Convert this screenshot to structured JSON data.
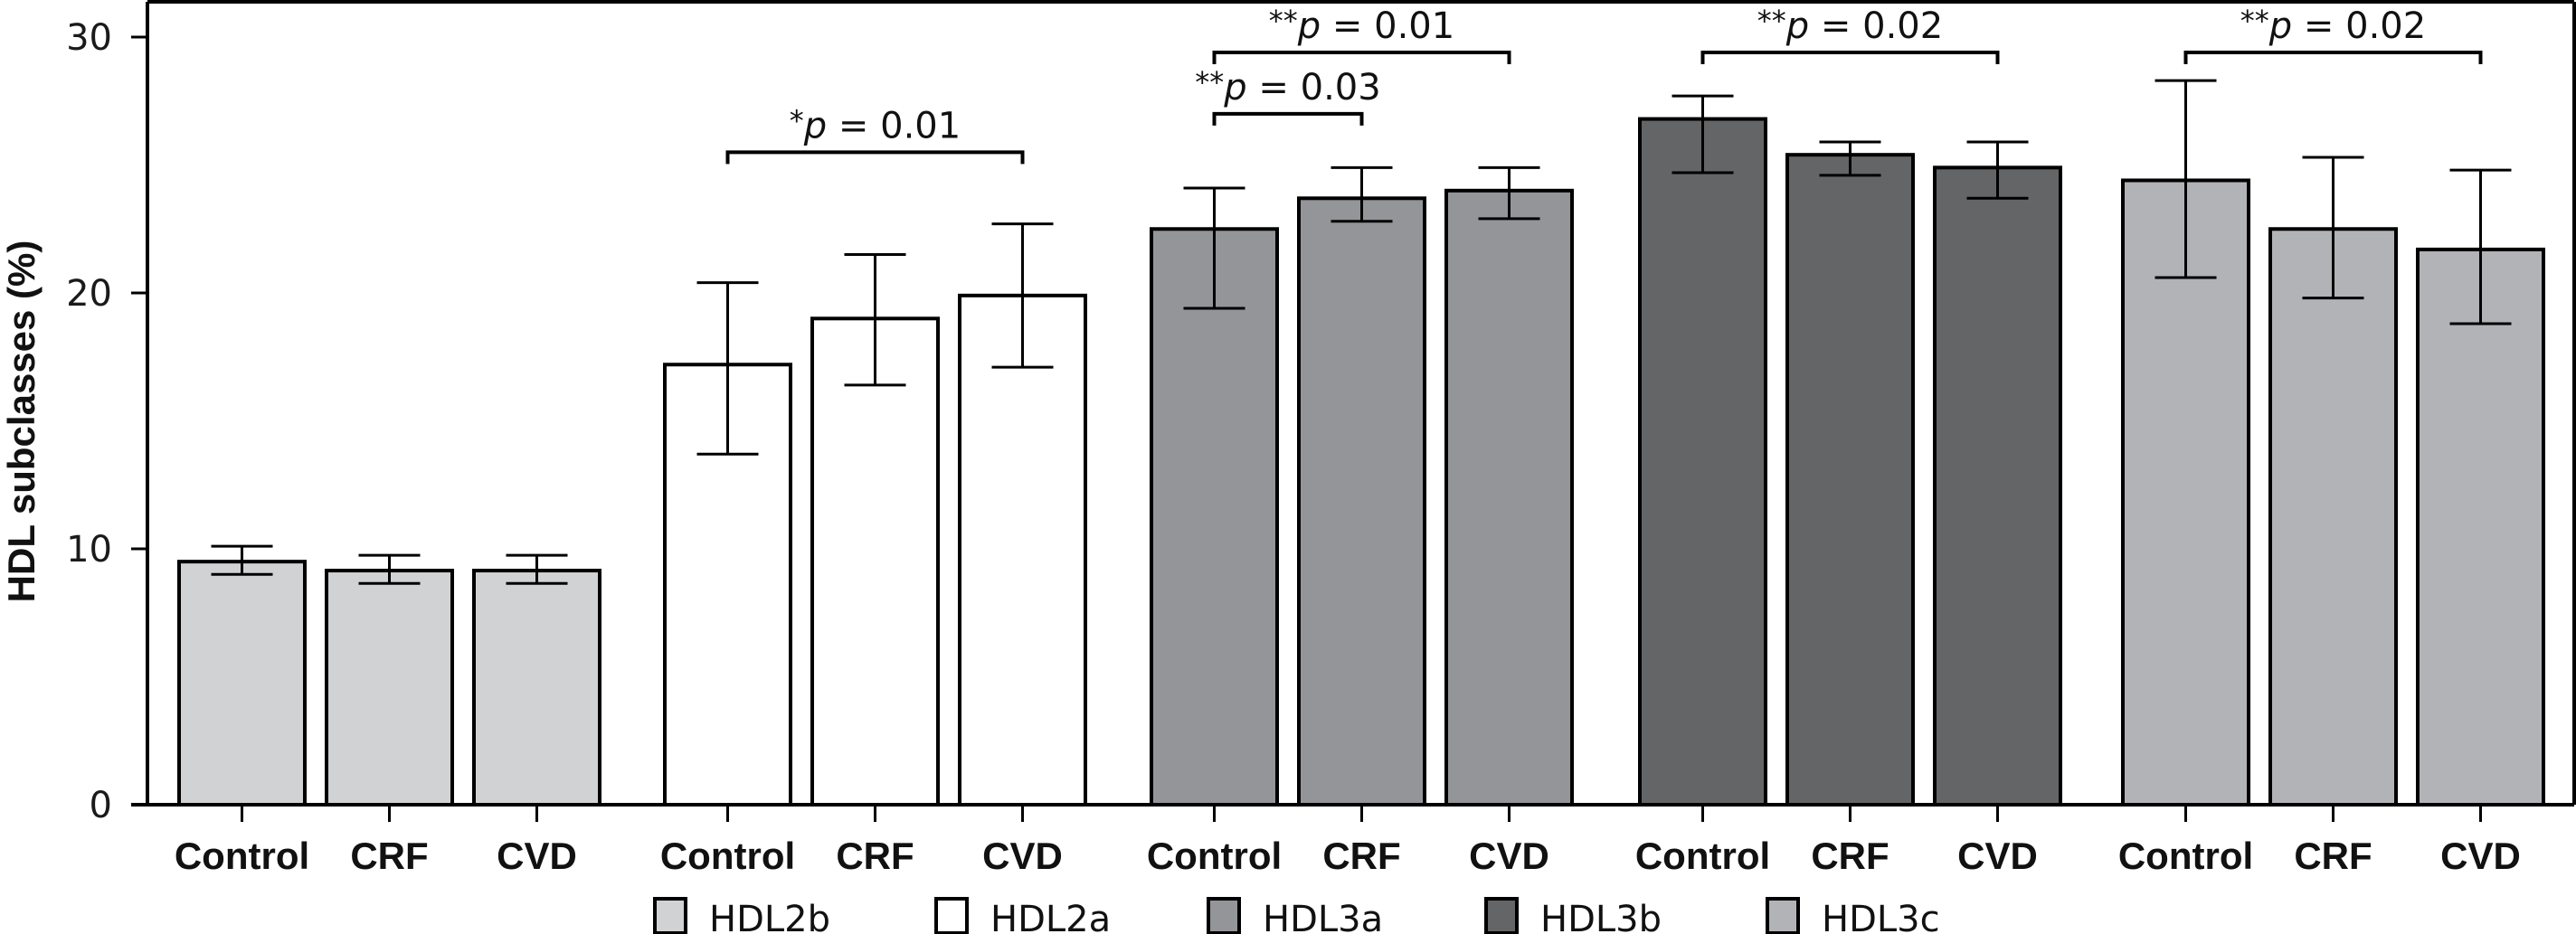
{
  "chart_data": {
    "type": "bar",
    "title": "",
    "xlabel": "",
    "ylabel": "HDL subclasses (%)",
    "ylim": [
      0,
      30
    ],
    "yticks": [
      0,
      10,
      20,
      30
    ],
    "grid": false,
    "legend_position": "bottom",
    "groups": [
      "HDL2b",
      "HDL2a",
      "HDL3a",
      "HDL3b",
      "HDL3c"
    ],
    "categories": [
      "Control",
      "CRF",
      "CVD"
    ],
    "series": [
      {
        "name": "HDL2b",
        "color": "#d1d2d4",
        "values": [
          9.5,
          9.15,
          9.15
        ],
        "err_low": [
          9.0,
          8.65,
          8.65
        ],
        "err_high": [
          10.1,
          9.75,
          9.75
        ]
      },
      {
        "name": "HDL2a",
        "color": "#ffffff",
        "values": [
          17.2,
          19.0,
          19.9
        ],
        "err_low": [
          13.7,
          16.4,
          17.1
        ],
        "err_high": [
          20.4,
          21.5,
          22.7
        ]
      },
      {
        "name": "HDL3a",
        "color": "#939598",
        "values": [
          22.5,
          23.7,
          24.0
        ],
        "err_low": [
          19.4,
          22.8,
          22.9
        ],
        "err_high": [
          24.1,
          24.9,
          24.9
        ]
      },
      {
        "name": "HDL3b",
        "color": "#646567",
        "values": [
          26.8,
          25.4,
          24.9
        ],
        "err_low": [
          24.7,
          24.6,
          23.7
        ],
        "err_high": [
          27.7,
          25.9,
          25.9
        ]
      },
      {
        "name": "HDL3c",
        "color": "#b1b3b6",
        "values": [
          24.4,
          22.5,
          21.7
        ],
        "err_low": [
          20.6,
          19.8,
          18.8
        ],
        "err_high": [
          28.3,
          25.3,
          24.8
        ]
      }
    ],
    "annotations": [
      {
        "group": 1,
        "from": 0,
        "to": 2,
        "stars": "*",
        "p_label": "p",
        "text": " = 0.01",
        "level": 25.5
      },
      {
        "group": 2,
        "from": 0,
        "to": 2,
        "stars": "**",
        "p_label": "p",
        "text": " = 0.01",
        "level": 29.4
      },
      {
        "group": 2,
        "from": 0,
        "to": 1,
        "stars": "**",
        "p_label": "p",
        "text": " = 0.03",
        "level": 27.0
      },
      {
        "group": 3,
        "from": 0,
        "to": 2,
        "stars": "**",
        "p_label": "p",
        "text": " = 0.02",
        "level": 29.4
      },
      {
        "group": 4,
        "from": 0,
        "to": 2,
        "stars": "**",
        "p_label": "p",
        "text": " = 0.02",
        "level": 29.4
      }
    ]
  }
}
